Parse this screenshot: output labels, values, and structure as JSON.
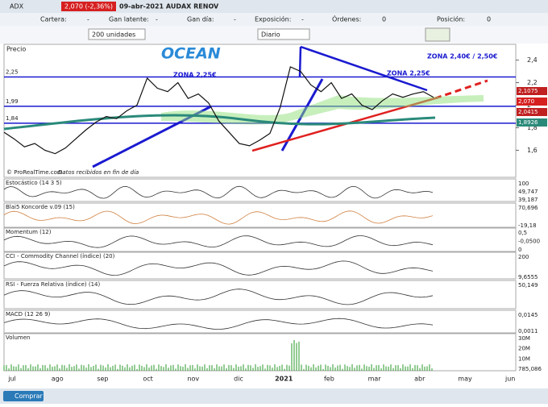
{
  "header": {
    "symbol": "ADX",
    "quote": "2,070 (-2,36%)",
    "date_name": "09-abr-2021 AUDAX RENOV"
  },
  "account": [
    {
      "label": "Cartera:",
      "value": "-"
    },
    {
      "label": "Gan latente:",
      "value": "-"
    },
    {
      "label": "Gan día:",
      "value": "-"
    },
    {
      "label": "Exposición:",
      "value": "-"
    },
    {
      "label": "Órdenes:",
      "value": "0"
    },
    {
      "label": "Posición:",
      "value": "0"
    }
  ],
  "controls": {
    "quantity": "200 unidades",
    "period": "Diario"
  },
  "chart_data": {
    "type": "line",
    "title": "Precio",
    "watermark": "OCEAN",
    "color": "#111111",
    "values": [
      1.76,
      1.7,
      1.63,
      1.66,
      1.6,
      1.57,
      1.62,
      1.7,
      1.78,
      1.85,
      1.9,
      1.88,
      1.95,
      2.0,
      2.24,
      2.15,
      2.12,
      2.2,
      2.06,
      2.1,
      2.02,
      1.86,
      1.76,
      1.66,
      1.64,
      1.69,
      1.75,
      1.98,
      2.34,
      2.3,
      2.18,
      2.12,
      2.2,
      2.06,
      2.1,
      2.0,
      1.96,
      2.04,
      2.1,
      2.07,
      2.1,
      2.12,
      2.07
    ],
    "ylim": [
      1.36,
      2.54
    ],
    "yticks": [
      {
        "value": 1.6,
        "label": "1,6"
      },
      {
        "value": 1.8,
        "label": "1,8"
      },
      {
        "value": 2,
        "label": "2"
      },
      {
        "value": 2.2,
        "label": "2,2"
      },
      {
        "value": 2.4,
        "label": "2,4"
      }
    ],
    "levels": [
      {
        "value": 2.25,
        "label": "2,25"
      },
      {
        "value": 1.99,
        "label": "1,99"
      },
      {
        "value": 1.84,
        "label": "1,84"
      }
    ],
    "readouts": [
      "2,1075",
      "2,070",
      "2,0415",
      "1,8926"
    ],
    "annotations": [
      "ZONA 2,25€",
      "ZONA 2,25€",
      "ZONA 2,40€ / 2,50€"
    ],
    "source": "© ProRealTime.com",
    "source_note": "Datos recibidos en fin de día",
    "x_labels": [
      "jul",
      "ago",
      "sep",
      "oct",
      "nov",
      "dic",
      "2021",
      "feb",
      "mar",
      "abr",
      "may",
      "jun"
    ]
  },
  "indicators": [
    {
      "label": "Estocástico (14 3 5)",
      "readouts": [
        "100",
        "49,747",
        "39,187"
      ]
    },
    {
      "label": "Blai5 Koncorde v.09 (15)",
      "readouts": [
        "70,696",
        "-19,18"
      ]
    },
    {
      "label": "Momentum (12)",
      "readouts": [
        "0,5",
        "-0,0500",
        "0"
      ]
    },
    {
      "label": "CCI - Commodity Channel (índice) (20)",
      "readouts": [
        "200",
        "9,6555"
      ]
    },
    {
      "label": "RSI - Fuerza Relativa (índice) (14)",
      "readouts": [
        "50,149"
      ]
    },
    {
      "label": "MACD (12 26 9)",
      "readouts": [
        "0,0145",
        "0,0011"
      ]
    },
    {
      "label": "Volumen",
      "readouts": [
        "30M",
        "20M",
        "10M",
        "785,086"
      ]
    }
  ],
  "footer": {
    "buy": "Comprar"
  }
}
